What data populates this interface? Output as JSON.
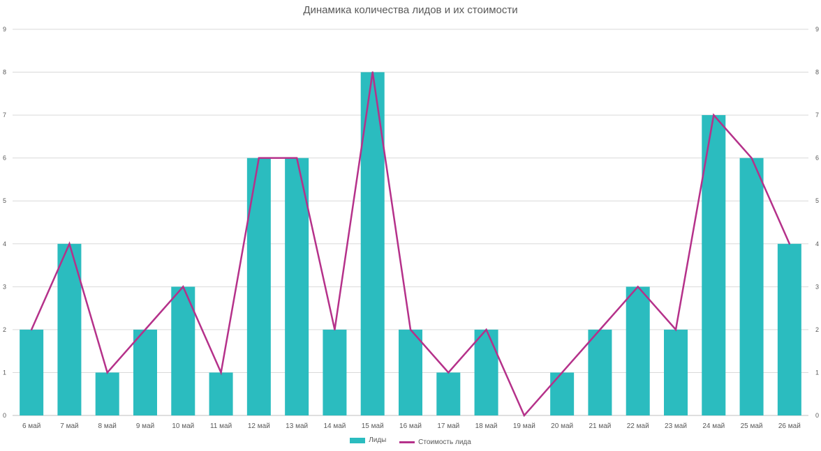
{
  "chart_data": {
    "type": "bar",
    "title": "Динамика количества лидов и их стоимости",
    "categories": [
      "6 май",
      "7 май",
      "8 май",
      "9 май",
      "10 май",
      "11 май",
      "12 май",
      "13 май",
      "14 май",
      "15 май",
      "16 май",
      "17 май",
      "18 май",
      "19 май",
      "20 май",
      "21 май",
      "22 май",
      "23 май",
      "24 май",
      "25 май",
      "26 май"
    ],
    "series": [
      {
        "name": "Лиды",
        "type": "bar",
        "color": "#2bbcbf",
        "values": [
          2,
          4,
          1,
          2,
          3,
          1,
          6,
          6,
          2,
          8,
          2,
          1,
          2,
          0,
          1,
          2,
          3,
          2,
          7,
          6,
          4
        ]
      },
      {
        "name": "Стоимость лида",
        "type": "line",
        "color": "#b5318a",
        "values": [
          2,
          4,
          1,
          2,
          3,
          1,
          6,
          6,
          2,
          8,
          2,
          1,
          2,
          0,
          1,
          2,
          3,
          2,
          7,
          6,
          4
        ]
      }
    ],
    "ylim": [
      0,
      9
    ],
    "yticks": [
      0,
      1,
      2,
      3,
      4,
      5,
      6,
      7,
      8,
      9
    ],
    "y2ticks": [
      0,
      1,
      2,
      3,
      4,
      5,
      6,
      7,
      8,
      9
    ],
    "grid": true,
    "legend_position": "bottom",
    "xlabel": "",
    "ylabel": ""
  }
}
